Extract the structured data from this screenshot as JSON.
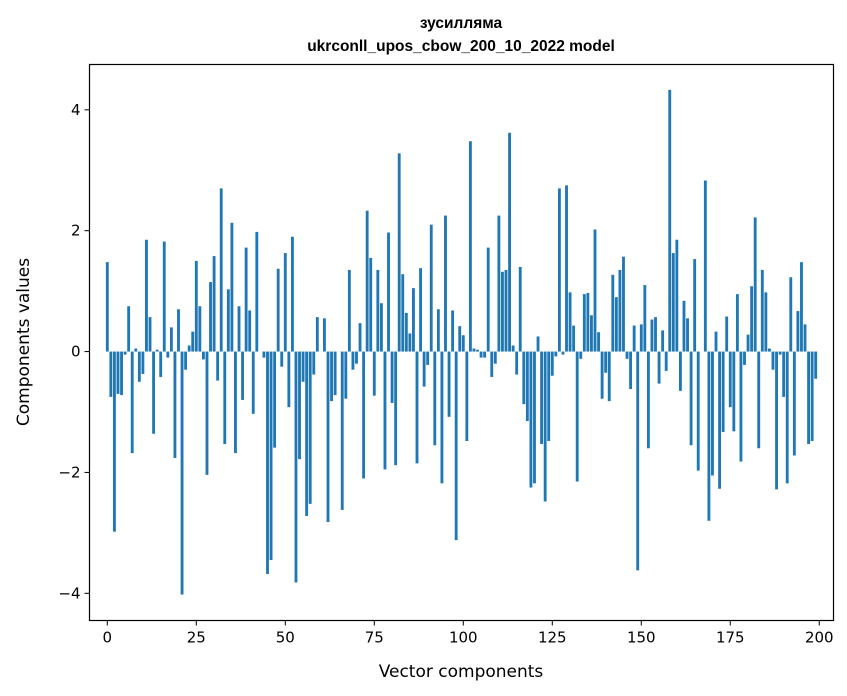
{
  "chart_data": {
    "type": "bar",
    "title_line1": "зусилляма",
    "title_line2": "ukrconll_upos_cbow_200_10_2022 model",
    "xlabel": "Vector components",
    "ylabel": "Components values",
    "xlim": [
      -5,
      204
    ],
    "ylim": [
      -4.45,
      4.75
    ],
    "xticks": [
      0,
      25,
      50,
      75,
      100,
      125,
      150,
      175,
      200
    ],
    "yticks": [
      -4,
      -2,
      0,
      2,
      4
    ],
    "xtick_labels": [
      "0",
      "25",
      "50",
      "75",
      "100",
      "125",
      "150",
      "175",
      "200"
    ],
    "ytick_labels": [
      "−4",
      "−2",
      "0",
      "2",
      "4"
    ],
    "bar_color": "#1f77b4",
    "values": [
      1.48,
      -0.75,
      -2.98,
      -0.7,
      -0.72,
      -0.05,
      0.75,
      -1.68,
      0.05,
      -0.5,
      -0.37,
      1.85,
      0.57,
      -1.36,
      0.03,
      -0.42,
      1.82,
      -0.1,
      0.4,
      -1.76,
      0.7,
      -4.02,
      -0.3,
      0.1,
      0.33,
      1.5,
      0.75,
      -0.13,
      -2.04,
      1.15,
      1.58,
      -0.48,
      2.7,
      -1.53,
      1.03,
      2.13,
      -1.68,
      0.75,
      -0.8,
      1.72,
      0.68,
      -1.03,
      1.98,
      0.0,
      -0.1,
      -3.68,
      -3.45,
      -1.59,
      1.37,
      -0.25,
      1.63,
      -0.92,
      1.9,
      -3.82,
      -1.78,
      -0.5,
      -2.72,
      -2.52,
      -0.38,
      0.57,
      0.0,
      0.55,
      -2.82,
      -0.82,
      -0.72,
      0.0,
      -2.62,
      -0.78,
      1.35,
      -0.3,
      -0.2,
      0.47,
      -2.1,
      2.33,
      1.55,
      -0.73,
      1.35,
      0.8,
      -1.95,
      1.97,
      -0.85,
      -1.88,
      3.28,
      1.28,
      0.64,
      0.3,
      1.05,
      -1.85,
      1.38,
      -0.58,
      -0.22,
      2.1,
      -1.55,
      0.7,
      -2.18,
      2.25,
      -1.08,
      0.68,
      -3.12,
      0.42,
      0.27,
      -1.48,
      3.48,
      0.05,
      0.03,
      -0.1,
      -0.1,
      1.72,
      -0.42,
      -0.2,
      2.25,
      1.32,
      1.35,
      3.62,
      0.1,
      -0.38,
      1.4,
      -0.87,
      -1.15,
      -2.25,
      -2.18,
      0.25,
      -1.53,
      -2.48,
      -1.48,
      -0.4,
      -0.08,
      2.7,
      -0.05,
      2.75,
      0.98,
      0.43,
      -2.15,
      -0.12,
      0.95,
      0.97,
      0.6,
      2.02,
      0.32,
      -0.78,
      -0.35,
      -0.82,
      1.27,
      0.9,
      1.35,
      1.57,
      -0.12,
      -0.62,
      0.43,
      -3.62,
      0.45,
      1.1,
      -1.6,
      0.53,
      0.57,
      -0.53,
      0.35,
      -0.32,
      4.33,
      1.63,
      1.85,
      -0.65,
      0.84,
      0.55,
      -1.55,
      1.53,
      -1.97,
      0.0,
      2.83,
      -2.8,
      -2.05,
      0.33,
      -2.27,
      -1.33,
      0.58,
      -0.92,
      -1.32,
      0.95,
      -1.82,
      -0.22,
      0.28,
      1.08,
      2.22,
      -1.6,
      1.35,
      0.98,
      0.05,
      -0.3,
      -2.28,
      -0.05,
      -0.75,
      -2.18,
      1.23,
      -1.72,
      0.67,
      1.48,
      0.45,
      -1.53,
      -1.48,
      -0.45
    ]
  }
}
